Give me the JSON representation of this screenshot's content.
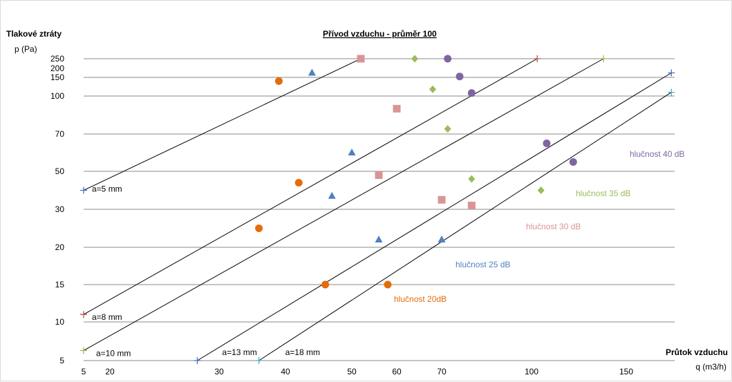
{
  "chart_data": {
    "type": "line",
    "title": "Přívod vzduchu - průměr 100",
    "ylabel": "Tlakové ztráty",
    "ylabel_unit": "p (Pa)",
    "xlabel": "Průtok vzduchu",
    "xlabel_unit": "q (m3/h)",
    "grid": "horizontal",
    "x_ticks": [
      {
        "label": "5",
        "q": 5
      },
      {
        "label": "20",
        "q": 20
      },
      {
        "label": "30",
        "q": 30
      },
      {
        "label": "40",
        "q": 40
      },
      {
        "label": "50",
        "q": 50
      },
      {
        "label": "60",
        "q": 60
      },
      {
        "label": "70",
        "q": 70
      },
      {
        "label": "100",
        "q": 100
      },
      {
        "label": "150",
        "q": 150
      }
    ],
    "y_ticks": [
      {
        "label": "5",
        "p": 5
      },
      {
        "label": "10",
        "p": 10
      },
      {
        "label": "15",
        "p": 15
      },
      {
        "label": "20",
        "p": 20
      },
      {
        "label": "30",
        "p": 30
      },
      {
        "label": "50",
        "p": 50
      },
      {
        "label": "70",
        "p": 70
      },
      {
        "label": "100",
        "p": 100
      },
      {
        "label": "150",
        "p": 150
      },
      {
        "label": "200",
        "p": 200
      },
      {
        "label": "250",
        "p": 250
      }
    ],
    "y_grid_levels": [
      5,
      10,
      15,
      20,
      30,
      50,
      70,
      100,
      150,
      250
    ],
    "lines": [
      {
        "label": "a=5 mm",
        "color": "#4472c4",
        "start": {
          "q": 5,
          "p": 40
        },
        "end": {
          "q": 52,
          "p": 250
        }
      },
      {
        "label": "a=8 mm",
        "color": "#c0504d",
        "start": {
          "q": 5,
          "p": 11
        },
        "end": {
          "q": 103,
          "p": 250
        }
      },
      {
        "label": "a=10 mm",
        "color": "#9bbb59",
        "start": {
          "q": 5,
          "p": 6.3
        },
        "end": {
          "q": 138,
          "p": 250
        }
      },
      {
        "label": "a=13 mm",
        "color": "#4472c4",
        "start": {
          "q": 28,
          "p": 5
        },
        "end": {
          "q": 178,
          "p": 175
        }
      },
      {
        "label": "a=18 mm",
        "color": "#4bacc6",
        "start": {
          "q": 36,
          "p": 5
        },
        "end": {
          "q": 178,
          "p": 110
        }
      }
    ],
    "series": [
      {
        "name": "hlučnost 20dB",
        "color": "#e46c0a",
        "marker": "circle",
        "points": [
          {
            "q": 39,
            "p": 140
          },
          {
            "q": 42,
            "p": 44
          },
          {
            "q": 36,
            "p": 25
          },
          {
            "q": 46,
            "p": 15
          },
          {
            "q": 58,
            "p": 15
          }
        ]
      },
      {
        "name": "hlučnost 25 dB",
        "color": "#4f81bd",
        "marker": "triangle",
        "points": [
          {
            "q": 44,
            "p": 175
          },
          {
            "q": 50,
            "p": 60
          },
          {
            "q": 47,
            "p": 37
          },
          {
            "q": 56,
            "p": 22
          },
          {
            "q": 70,
            "p": 22
          }
        ]
      },
      {
        "name": "hlučnost 30 dB",
        "color": "#d99594",
        "marker": "square",
        "points": [
          {
            "q": 52,
            "p": 250
          },
          {
            "q": 60,
            "p": 90
          },
          {
            "q": 56,
            "p": 48
          },
          {
            "q": 70,
            "p": 35
          },
          {
            "q": 80,
            "p": 32
          }
        ]
      },
      {
        "name": "hlučnost 35 dB",
        "color": "#9bbb59",
        "marker": "diamond",
        "points": [
          {
            "q": 64,
            "p": 250
          },
          {
            "q": 68,
            "p": 118
          },
          {
            "q": 72,
            "p": 74
          },
          {
            "q": 80,
            "p": 46
          },
          {
            "q": 105,
            "p": 40
          }
        ]
      },
      {
        "name": "hlučnost 40 dB",
        "color": "#8064a2",
        "marker": "circle",
        "points": [
          {
            "q": 72,
            "p": 250
          },
          {
            "q": 76,
            "p": 155
          },
          {
            "q": 80,
            "p": 108
          },
          {
            "q": 108,
            "p": 65
          },
          {
            "q": 122,
            "p": 55
          }
        ]
      }
    ]
  }
}
